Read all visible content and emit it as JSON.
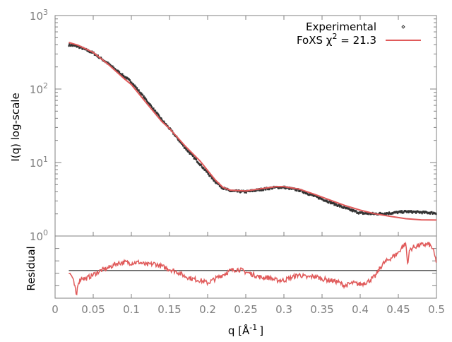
{
  "chart_data": [
    {
      "type": "line",
      "panel": "top",
      "ylabel": "I(q) log-scale",
      "yscale": "log",
      "xlim": [
        0,
        0.5
      ],
      "ylim": [
        1,
        1000
      ],
      "ytick_labels": [
        {
          "base": "10",
          "exp": "0",
          "value": 1
        },
        {
          "base": "10",
          "exp": "1",
          "value": 10
        },
        {
          "base": "10",
          "exp": "2",
          "value": 100
        },
        {
          "base": "10",
          "exp": "3",
          "value": 1000
        }
      ],
      "grid": false,
      "legend": {
        "placement": "top-right"
      },
      "series": [
        {
          "name": "Experimental",
          "style": "points",
          "color": "#333333",
          "x": [
            0.018,
            0.03,
            0.05,
            0.07,
            0.09,
            0.1,
            0.12,
            0.14,
            0.15,
            0.17,
            0.19,
            0.2,
            0.21,
            0.22,
            0.23,
            0.25,
            0.27,
            0.29,
            0.3,
            0.32,
            0.34,
            0.36,
            0.38,
            0.4,
            0.42,
            0.44,
            0.46,
            0.48,
            0.5
          ],
          "y": [
            400,
            380,
            310,
            220,
            150,
            125,
            70,
            38,
            29,
            16,
            9.5,
            7.2,
            5.5,
            4.5,
            4.1,
            4.0,
            4.3,
            4.6,
            4.6,
            4.2,
            3.5,
            2.9,
            2.4,
            2.05,
            2.0,
            2.05,
            2.15,
            2.1,
            2.05
          ]
        },
        {
          "name": "FoXS χ² = 21.3",
          "legend_label": "FoXS χ",
          "legend_sup": "2",
          "legend_tail": " = 21.3",
          "style": "line",
          "color": "#e05a5a",
          "x": [
            0.018,
            0.03,
            0.05,
            0.07,
            0.09,
            0.1,
            0.12,
            0.14,
            0.15,
            0.17,
            0.19,
            0.2,
            0.21,
            0.22,
            0.23,
            0.25,
            0.27,
            0.29,
            0.3,
            0.32,
            0.34,
            0.36,
            0.38,
            0.4,
            0.42,
            0.44,
            0.46,
            0.48,
            0.5
          ],
          "y": [
            430,
            395,
            315,
            215,
            140,
            115,
            64,
            36,
            29,
            17,
            10.5,
            7.8,
            5.8,
            4.6,
            4.2,
            4.1,
            4.4,
            4.7,
            4.7,
            4.35,
            3.7,
            3.1,
            2.6,
            2.25,
            2.0,
            1.85,
            1.72,
            1.66,
            1.65
          ]
        }
      ]
    },
    {
      "type": "line",
      "panel": "bottom",
      "ylabel": "Residual",
      "xlabel": "q [Å",
      "xlabel_sup": "-1",
      "xlabel_tail": "]",
      "xlim": [
        0,
        0.5
      ],
      "ylim": [
        -2,
        2.5
      ],
      "xtick_labels": [
        "0",
        "0.05",
        "0.1",
        "0.15",
        "0.2",
        "0.25",
        "0.3",
        "0.35",
        "0.4",
        "0.45",
        "0.5"
      ],
      "xticks": [
        0,
        0.05,
        0.1,
        0.15,
        0.2,
        0.25,
        0.3,
        0.35,
        0.4,
        0.45,
        0.5
      ],
      "zero_line": 0,
      "series": [
        {
          "color": "#e05a5a",
          "x": [
            0.018,
            0.022,
            0.026,
            0.028,
            0.03,
            0.035,
            0.04,
            0.05,
            0.06,
            0.07,
            0.08,
            0.09,
            0.1,
            0.11,
            0.12,
            0.13,
            0.14,
            0.15,
            0.16,
            0.17,
            0.18,
            0.19,
            0.2,
            0.21,
            0.22,
            0.23,
            0.24,
            0.25,
            0.26,
            0.27,
            0.28,
            0.29,
            0.3,
            0.31,
            0.32,
            0.33,
            0.34,
            0.35,
            0.36,
            0.37,
            0.38,
            0.39,
            0.4,
            0.41,
            0.42,
            0.425,
            0.43,
            0.44,
            0.45,
            0.455,
            0.46,
            0.462,
            0.465,
            0.47,
            0.48,
            0.49,
            0.495,
            0.5
          ],
          "y": [
            -0.15,
            -0.4,
            -1.2,
            -1.9,
            -0.9,
            -0.5,
            -0.6,
            -0.3,
            0.0,
            0.2,
            0.5,
            0.6,
            0.55,
            0.6,
            0.4,
            0.5,
            0.3,
            0.1,
            -0.1,
            -0.4,
            -0.6,
            -0.7,
            -0.9,
            -0.6,
            -0.3,
            0.0,
            0.1,
            -0.1,
            -0.3,
            -0.5,
            -0.5,
            -0.7,
            -0.7,
            -0.5,
            -0.3,
            -0.5,
            -0.4,
            -0.6,
            -0.7,
            -0.8,
            -1.1,
            -0.9,
            -1.0,
            -0.8,
            -0.4,
            0.1,
            0.5,
            0.9,
            1.3,
            1.7,
            1.95,
            0.5,
            1.5,
            1.7,
            1.85,
            1.9,
            1.6,
            0.6
          ]
        }
      ]
    }
  ]
}
